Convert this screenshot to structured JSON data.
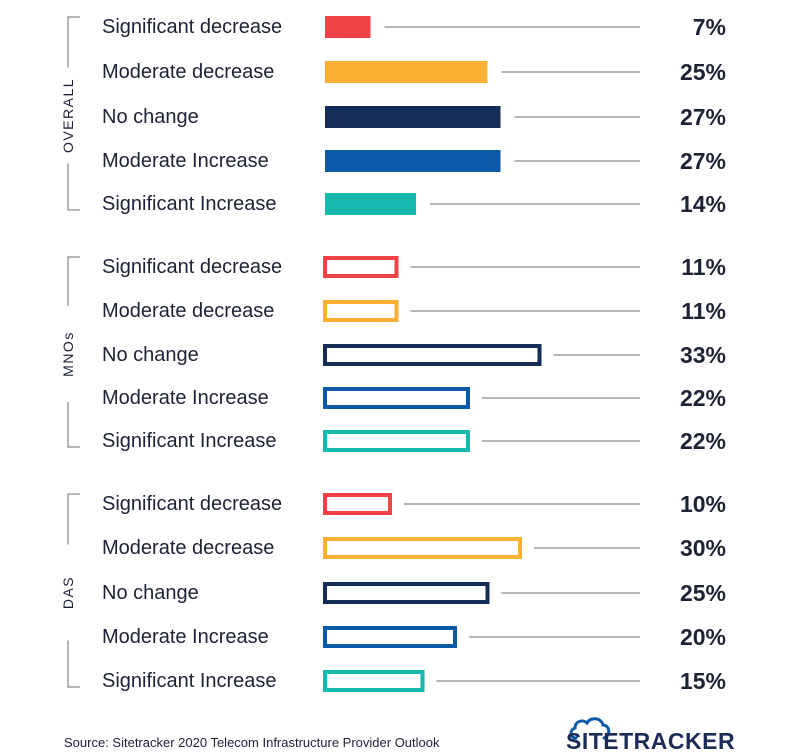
{
  "chart_data": {
    "type": "bar",
    "orientation": "horizontal",
    "unit": "%",
    "colors": {
      "Significant decrease": "#ef4246",
      "Moderate decrease": "#fbb034",
      "No change": "#152d56",
      "Moderate Increase": "#0a5aa8",
      "Significant Increase": "#17b8ae"
    },
    "axis_color": "#9aa0a6",
    "label_color": "#1e2235",
    "groups": [
      {
        "name": "OVERALL",
        "style": "filled",
        "categories": [
          "Significant decrease",
          "Moderate decrease",
          "No change",
          "Moderate Increase",
          "Significant Increase"
        ],
        "values": [
          7,
          25,
          27,
          27,
          14
        ]
      },
      {
        "name": "MNOs",
        "style": "outline",
        "categories": [
          "Significant decrease",
          "Moderate decrease",
          "No change",
          "Moderate Increase",
          "Significant Increase"
        ],
        "values": [
          11,
          11,
          33,
          22,
          22
        ]
      },
      {
        "name": "DAS",
        "style": "outline",
        "categories": [
          "Significant decrease",
          "Moderate decrease",
          "No change",
          "Moderate Increase",
          "Significant Increase"
        ],
        "values": [
          10,
          30,
          25,
          20,
          15
        ]
      }
    ]
  },
  "footer": {
    "source": "Source: Sitetracker 2020 Telecom Infrastructure Provider Outlook",
    "logo_text": "SITETRACKER",
    "logo_icon": "cloud-icon"
  }
}
